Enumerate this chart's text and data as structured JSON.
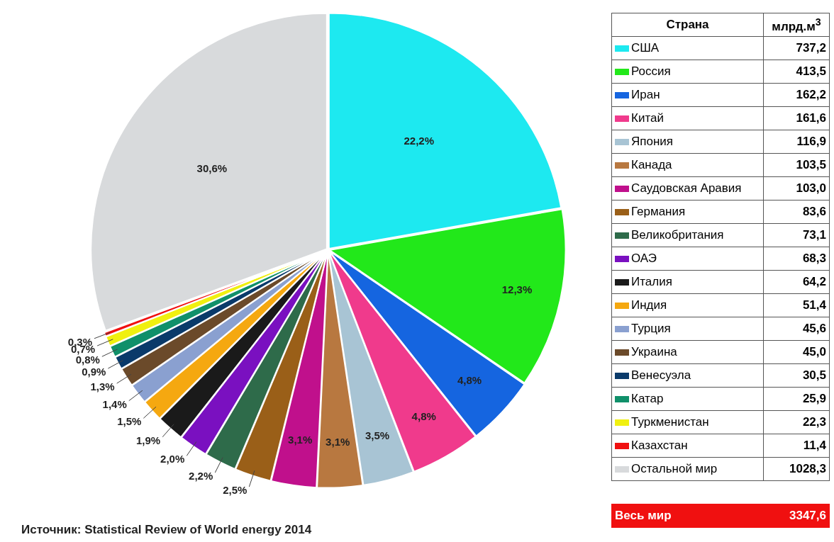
{
  "chart_data": [
    {
      "type": "pie",
      "categories": [
        "США",
        "Россия",
        "Иран",
        "Китай",
        "Япония",
        "Канада",
        "Саудовская Аравия",
        "Германия",
        "Великобритания",
        "ОАЭ",
        "Италия",
        "Индия",
        "Турция",
        "Украина",
        "Венесуэла",
        "Катар",
        "Туркменистан",
        "Казахстан",
        "Остальной мир"
      ],
      "values": [
        22.2,
        12.3,
        4.8,
        4.8,
        3.5,
        3.1,
        3.1,
        2.5,
        2.2,
        2.0,
        1.9,
        1.5,
        1.4,
        1.3,
        0.9,
        0.8,
        0.7,
        0.3,
        30.6
      ],
      "value_labels": [
        "22,2%",
        "12,3%",
        "4,8%",
        "4,8%",
        "3,5%",
        "3,1%",
        "3,1%",
        "2,5%",
        "2,2%",
        "2,0%",
        "1,9%",
        "1,5%",
        "1,4%",
        "1,3%",
        "0,9%",
        "0,8%",
        "0,7%",
        "0,3%",
        "30,6%"
      ],
      "colors": [
        "#1de9f0",
        "#22e81a",
        "#1565e0",
        "#f03a8c",
        "#a8c4d4",
        "#b87840",
        "#c0108c",
        "#9a5f18",
        "#2e6b4a",
        "#7a10c0",
        "#1a1a1a",
        "#f5a810",
        "#8aa0d0",
        "#6b4a2a",
        "#0a3a6a",
        "#10906a",
        "#f0f010",
        "#f01010",
        "#d8dadc"
      ],
      "annotations": [
        "Источник: Statistical Review of World energy 2014"
      ]
    },
    {
      "type": "other",
      "legend_title": "Страна",
      "ylabel": "млрд.м$^{3}$",
      "value_labels": [
        "737,2",
        "413,5",
        "162,2",
        "161,6",
        "116,9",
        "103,5",
        "103,0",
        "83,6",
        "73,1",
        "68,3",
        "64,2",
        "51,4",
        "45,6",
        "45,0",
        "30,5",
        "25,9",
        "22,3",
        "11,4",
        "1028,3"
      ],
      "totals": [
        "3347,6"
      ],
      "annotations": [
        "Весь мир"
      ]
    }
  ]
}
